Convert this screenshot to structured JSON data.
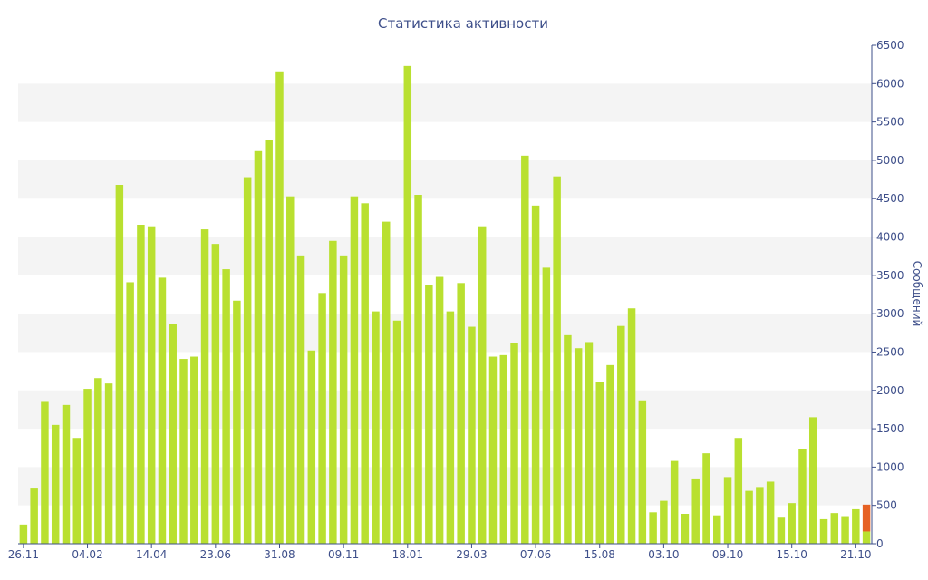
{
  "chart_data": {
    "type": "bar",
    "title": "Статистика активности",
    "ylabel": "Сообщений",
    "xlabel": "",
    "ylim": [
      0,
      6500
    ],
    "yticks": [
      0,
      500,
      1000,
      1500,
      2000,
      2500,
      3000,
      3500,
      4000,
      4500,
      5000,
      5500,
      6000,
      6500
    ],
    "y_axis_position": "right",
    "grid": "alternating horizontal bands",
    "x_tick_labels": [
      {
        "index": 0,
        "label": "26.11"
      },
      {
        "index": 6,
        "label": "04.02"
      },
      {
        "index": 12,
        "label": "14.04"
      },
      {
        "index": 18,
        "label": "23.06"
      },
      {
        "index": 24,
        "label": "31.08"
      },
      {
        "index": 30,
        "label": "09.11"
      },
      {
        "index": 36,
        "label": "18.01"
      },
      {
        "index": 42,
        "label": "29.03"
      },
      {
        "index": 48,
        "label": "07.06"
      },
      {
        "index": 54,
        "label": "15.08"
      },
      {
        "index": 60,
        "label": "03.10"
      },
      {
        "index": 66,
        "label": "09.10"
      },
      {
        "index": 72,
        "label": "15.10"
      },
      {
        "index": 78,
        "label": "21.10"
      }
    ],
    "values": [
      250,
      720,
      1850,
      1550,
      1810,
      1380,
      2020,
      2160,
      2090,
      4680,
      3410,
      4160,
      4140,
      3470,
      2870,
      2410,
      2440,
      4100,
      3910,
      3580,
      3170,
      4780,
      5120,
      5260,
      6160,
      4530,
      3760,
      2520,
      3270,
      3950,
      3760,
      4530,
      4440,
      3030,
      4200,
      2910,
      6230,
      4550,
      3380,
      3480,
      3030,
      3400,
      2830,
      4140,
      2440,
      2460,
      2620,
      5060,
      4410,
      3600,
      4790,
      2720,
      2550,
      2630,
      2110,
      2330,
      2840,
      3070,
      1870,
      410,
      560,
      1080,
      390,
      840,
      1180,
      370,
      870,
      1380,
      690,
      740,
      810,
      340,
      530,
      1240,
      1650,
      320,
      400,
      360,
      450,
      160
    ],
    "overlay": {
      "index": 79,
      "value": 350,
      "color": "#e66124"
    },
    "colors": {
      "bar": "#b9e030",
      "overlay": "#e66124",
      "band": "#f4f4f4",
      "text": "#3e4f8a",
      "axis": "#3e4f8a"
    }
  }
}
